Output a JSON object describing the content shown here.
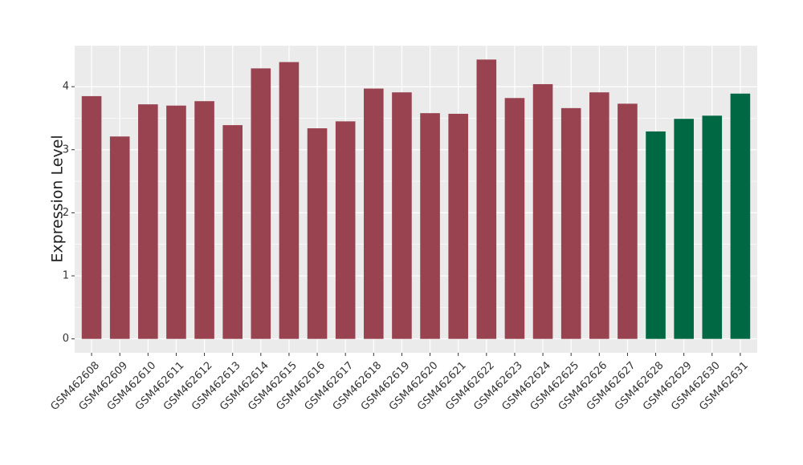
{
  "chart_data": {
    "type": "bar",
    "y_label": "Expression Level",
    "categories": [
      "GSM462608",
      "GSM462609",
      "GSM462610",
      "GSM462611",
      "GSM462612",
      "GSM462613",
      "GSM462614",
      "GSM462615",
      "GSM462616",
      "GSM462617",
      "GSM462618",
      "GSM462619",
      "GSM462620",
      "GSM462621",
      "GSM462622",
      "GSM462623",
      "GSM462624",
      "GSM462625",
      "GSM462626",
      "GSM462627",
      "GSM462628",
      "GSM462629",
      "GSM462630",
      "GSM462631"
    ],
    "values": [
      3.85,
      3.21,
      3.72,
      3.7,
      3.77,
      3.39,
      4.29,
      4.39,
      3.34,
      3.45,
      3.97,
      3.91,
      3.58,
      3.57,
      4.43,
      3.82,
      4.04,
      3.66,
      3.91,
      3.73,
      3.29,
      3.49,
      3.54,
      3.89
    ],
    "colors": [
      "#994250",
      "#994250",
      "#994250",
      "#994250",
      "#994250",
      "#994250",
      "#994250",
      "#994250",
      "#994250",
      "#994250",
      "#994250",
      "#994250",
      "#994250",
      "#994250",
      "#994250",
      "#994250",
      "#994250",
      "#994250",
      "#994250",
      "#994250",
      "#006843",
      "#006843",
      "#006843",
      "#006843"
    ],
    "ylim": [
      -0.22,
      4.65
    ],
    "yticks": [
      0,
      1,
      2,
      3,
      4
    ],
    "grid": true
  }
}
